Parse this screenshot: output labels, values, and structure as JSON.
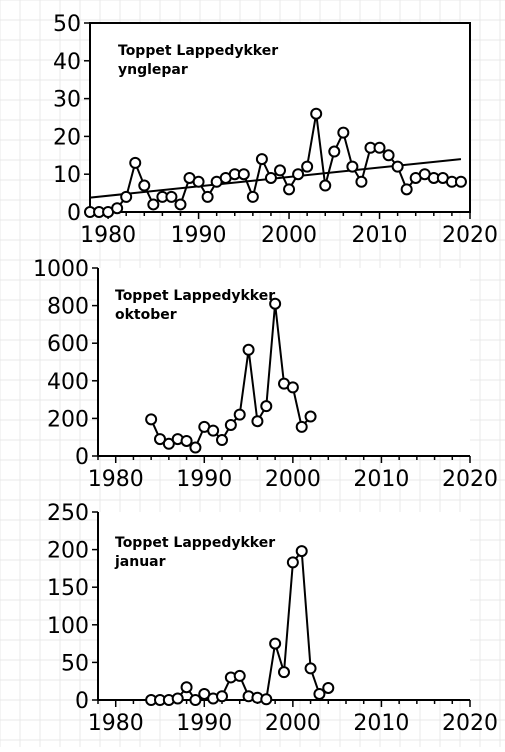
{
  "chart_data": [
    {
      "type": "line",
      "title_lines": [
        "Toppet Lappedykker",
        "ynglepar"
      ],
      "xlim": [
        1978,
        2020
      ],
      "ylim": [
        0,
        50
      ],
      "xticks": [
        1980,
        1990,
        2000,
        2010,
        2020
      ],
      "yticks": [
        0,
        10,
        20,
        30,
        40,
        50
      ],
      "series": [
        {
          "x": [
            1978,
            1979,
            1980,
            1981,
            1982,
            1983,
            1984,
            1985,
            1986,
            1987,
            1988,
            1989,
            1990,
            1991,
            1992,
            1993,
            1994,
            1995,
            1996,
            1997,
            1998,
            1999,
            2000,
            2001,
            2002,
            2003,
            2004,
            2005,
            2006,
            2007,
            2008,
            2009,
            2010,
            2011,
            2012,
            2013,
            2014,
            2015,
            2016,
            2017,
            2018,
            2019
          ],
          "y": [
            0,
            0,
            0,
            1,
            4,
            13,
            7,
            2,
            4,
            4,
            2,
            9,
            8,
            4,
            8,
            9,
            10,
            10,
            4,
            14,
            9,
            11,
            6,
            10,
            12,
            26,
            7,
            16,
            21,
            12,
            8,
            17,
            17,
            15,
            12,
            6,
            9,
            10,
            9,
            9,
            8,
            8
          ]
        }
      ],
      "trend": {
        "x": [
          1978,
          2019
        ],
        "y": [
          3.8,
          14.0
        ]
      },
      "grid": true
    },
    {
      "type": "line",
      "title_lines": [
        "Toppet Lappedykker",
        "oktober"
      ],
      "xlim": [
        1978,
        2020
      ],
      "ylim": [
        0,
        1000
      ],
      "xticks": [
        1980,
        1990,
        2000,
        2010,
        2020
      ],
      "yticks": [
        0,
        200,
        400,
        600,
        800,
        1000
      ],
      "series": [
        {
          "x": [
            1984,
            1985,
            1986,
            1987,
            1988,
            1989,
            1990,
            1991,
            1992,
            1993,
            1994,
            1995,
            1996,
            1997,
            1998,
            1999,
            2000,
            2001,
            2002
          ],
          "y": [
            195,
            90,
            65,
            90,
            80,
            45,
            155,
            135,
            85,
            165,
            220,
            565,
            185,
            265,
            810,
            385,
            365,
            155,
            210
          ]
        }
      ],
      "grid": true
    },
    {
      "type": "line",
      "title_lines": [
        "Toppet Lappedykker",
        "januar"
      ],
      "xlim": [
        1978,
        2020
      ],
      "ylim": [
        0,
        250
      ],
      "xticks": [
        1980,
        1990,
        2000,
        2010,
        2020
      ],
      "yticks": [
        0,
        50,
        100,
        150,
        200,
        250
      ],
      "series": [
        {
          "x": [
            1984,
            1985,
            1986,
            1987,
            1988,
            1989,
            1990,
            1991,
            1992,
            1993,
            1994,
            1995,
            1996,
            1997,
            1998,
            1999,
            2000,
            2001,
            2002,
            2003,
            2004
          ],
          "y": [
            0,
            0,
            0,
            2,
            17,
            0,
            8,
            2,
            5,
            30,
            32,
            5,
            3,
            1,
            75,
            37,
            183,
            198,
            42,
            8,
            16
          ]
        }
      ],
      "grid": true
    }
  ]
}
